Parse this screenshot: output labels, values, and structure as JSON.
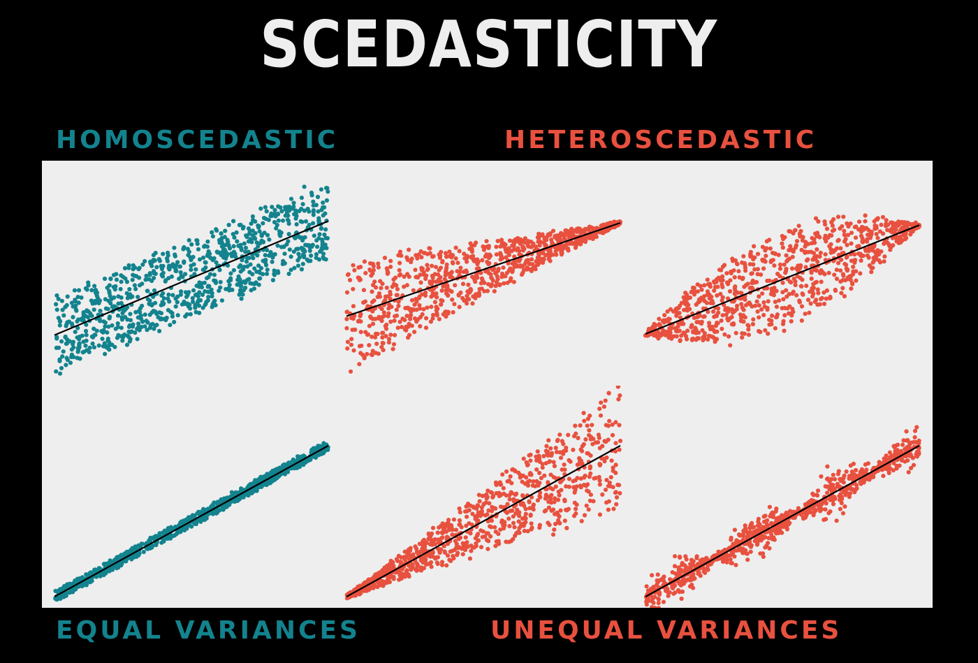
{
  "title": "SCEDASTICITY",
  "labels": {
    "homoscedastic": "HOMOSCEDASTIC",
    "heteroscedastic": "HETEROSCEDASTIC",
    "equal_variances": "EQUAL VARIANCES",
    "unequal_variances": "UNEQUAL VARIANCES"
  },
  "colors": {
    "background": "#000000",
    "title": "#eeeeee",
    "homoscedastic": "#13838e",
    "heteroscedastic": "#e8513f",
    "plot_background": "#eeeeee",
    "fit_line": "#000000"
  },
  "chart_data": [
    {
      "type": "scatter",
      "group": "homoscedastic",
      "pattern": "constant-wide",
      "points": 900,
      "fit_line": {
        "start": 0.22,
        "end": 0.73
      },
      "spread": 0.17
    },
    {
      "type": "scatter",
      "group": "homoscedastic",
      "pattern": "constant-narrow",
      "points": 900,
      "fit_line": {
        "start": 0.05,
        "end": 0.73
      },
      "spread": 0.025
    },
    {
      "type": "scatter",
      "group": "heteroscedastic",
      "pattern": "decreasing-spread",
      "points": 900,
      "fit_line": {
        "start": 0.3,
        "end": 0.72
      }
    },
    {
      "type": "scatter",
      "group": "heteroscedastic",
      "pattern": "increasing-spread",
      "points": 900,
      "fit_line": {
        "start": 0.05,
        "end": 0.73
      }
    },
    {
      "type": "scatter",
      "group": "heteroscedastic",
      "pattern": "diamond-spread",
      "points": 900,
      "fit_line": {
        "start": 0.22,
        "end": 0.71
      }
    },
    {
      "type": "scatter",
      "group": "heteroscedastic",
      "pattern": "cyclic-spread",
      "points": 900,
      "fit_line": {
        "start": 0.05,
        "end": 0.73
      }
    }
  ]
}
